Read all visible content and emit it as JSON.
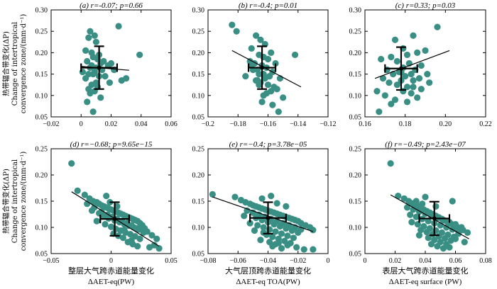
{
  "colors": {
    "point": "#3a8f84",
    "line": "#000000"
  },
  "ylabel_lines": [
    "热带辐合带变化(ΔP)",
    "Change of intertropical",
    "convergence zone/(mm·d⁻¹)"
  ],
  "chart_data": [
    {
      "type": "scatter",
      "title": "(a) r=-0.07; p=0.66",
      "xlabel": "",
      "xlim": [
        -0.02,
        0.06
      ],
      "ylim": [
        0.05,
        0.3
      ],
      "xticks": [
        -0.02,
        0,
        0.02,
        0.04,
        0.06
      ],
      "xtick_labels": [
        "−0.02",
        "0",
        "0.02",
        "0.04",
        "0.06"
      ],
      "yticks": [
        0.05,
        0.1,
        0.15,
        0.2,
        0.25,
        0.3
      ],
      "ytick_labels": [
        "0.05",
        "0.10",
        "0.15",
        "0.20",
        "0.25",
        "0.30"
      ],
      "x": [
        0.006,
        0.009,
        0.005,
        0.01,
        0.003,
        0.007,
        0.012,
        0.008,
        0.011,
        0.004,
        0.015,
        0.013,
        0.02,
        0.018,
        0.007,
        0.006,
        0.01,
        0.014,
        0.022,
        0.009,
        0.001,
        0.005,
        0.008,
        0.012,
        0.016,
        0.003,
        0.03,
        0.027,
        0.019,
        0.01,
        0.007,
        0.011,
        0.005,
        0.009,
        0.013,
        0.039,
        0.025,
        0.004,
        0.008,
        0.006
      ],
      "y": [
        0.25,
        0.24,
        0.235,
        0.225,
        0.205,
        0.2,
        0.195,
        0.19,
        0.185,
        0.18,
        0.18,
        0.175,
        0.175,
        0.17,
        0.17,
        0.165,
        0.165,
        0.16,
        0.16,
        0.155,
        0.155,
        0.15,
        0.15,
        0.145,
        0.145,
        0.14,
        0.14,
        0.135,
        0.13,
        0.13,
        0.125,
        0.12,
        0.115,
        0.11,
        0.095,
        0.195,
        0.262,
        0.085,
        0.062,
        0.105
      ],
      "regression": {
        "x": [
          0.0,
          0.032
        ],
        "y": [
          0.168,
          0.159
        ]
      },
      "mean": {
        "x": 0.012,
        "y": 0.165,
        "xerr": 0.012,
        "yerr": 0.05
      }
    },
    {
      "type": "scatter",
      "title": "(b) r=-0.4; p=0.01",
      "xlabel": "",
      "xlim": [
        -0.2,
        -0.12
      ],
      "ylim": [
        0.05,
        0.3
      ],
      "xticks": [
        -0.2,
        -0.18,
        -0.16,
        -0.14,
        -0.12
      ],
      "xtick_labels": [
        "−0.2",
        "−0.18",
        "−0.16",
        "−0.14",
        "−0.12"
      ],
      "yticks": [
        0.05,
        0.1,
        0.15,
        0.2,
        0.25,
        0.3
      ],
      "ytick_labels": [
        "0.05",
        "0.10",
        "0.15",
        "0.20",
        "0.25",
        "0.30"
      ],
      "x": [
        -0.184,
        -0.181,
        -0.168,
        -0.165,
        -0.162,
        -0.171,
        -0.158,
        -0.166,
        -0.163,
        -0.16,
        -0.172,
        -0.169,
        -0.155,
        -0.164,
        -0.161,
        -0.167,
        -0.17,
        -0.157,
        -0.163,
        -0.166,
        -0.159,
        -0.175,
        -0.162,
        -0.152,
        -0.168,
        -0.165,
        -0.16,
        -0.156,
        -0.154,
        -0.171,
        -0.158,
        -0.142,
        -0.163,
        -0.15,
        -0.167,
        -0.161,
        -0.164,
        -0.157,
        -0.153,
        -0.166
      ],
      "y": [
        0.265,
        0.25,
        0.24,
        0.23,
        0.22,
        0.21,
        0.2,
        0.195,
        0.19,
        0.185,
        0.18,
        0.175,
        0.175,
        0.17,
        0.165,
        0.16,
        0.16,
        0.155,
        0.15,
        0.15,
        0.145,
        0.145,
        0.14,
        0.14,
        0.135,
        0.13,
        0.125,
        0.12,
        0.115,
        0.17,
        0.11,
        0.195,
        0.1,
        0.095,
        0.135,
        0.105,
        0.085,
        0.078,
        0.062,
        0.125
      ],
      "regression": {
        "x": [
          -0.184,
          -0.138
        ],
        "y": [
          0.205,
          0.12
        ]
      },
      "mean": {
        "x": -0.164,
        "y": 0.165,
        "xerr": 0.009,
        "yerr": 0.05
      }
    },
    {
      "type": "scatter",
      "title": "(c) r=0.33; p=0.03",
      "xlabel": "",
      "xlim": [
        0.16,
        0.22
      ],
      "ylim": [
        0.05,
        0.3
      ],
      "xticks": [
        0.16,
        0.18,
        0.2,
        0.22
      ],
      "xtick_labels": [
        "0.16",
        "0.18",
        "0.20",
        "0.22"
      ],
      "yticks": [
        0.05,
        0.1,
        0.15,
        0.2,
        0.25,
        0.3
      ],
      "ytick_labels": [
        "0.05",
        "0.10",
        "0.15",
        "0.20",
        "0.25",
        "0.30"
      ],
      "x": [
        0.184,
        0.175,
        0.179,
        0.19,
        0.186,
        0.181,
        0.173,
        0.168,
        0.176,
        0.182,
        0.188,
        0.179,
        0.171,
        0.185,
        0.177,
        0.183,
        0.174,
        0.18,
        0.169,
        0.187,
        0.178,
        0.184,
        0.192,
        0.172,
        0.176,
        0.181,
        0.188,
        0.166,
        0.179,
        0.183,
        0.17,
        0.186,
        0.175,
        0.181,
        0.173,
        0.196,
        0.178,
        0.184,
        0.167,
        0.191
      ],
      "y": [
        0.24,
        0.23,
        0.21,
        0.205,
        0.2,
        0.195,
        0.19,
        0.185,
        0.18,
        0.175,
        0.17,
        0.165,
        0.16,
        0.16,
        0.155,
        0.15,
        0.15,
        0.145,
        0.14,
        0.14,
        0.135,
        0.135,
        0.13,
        0.13,
        0.125,
        0.12,
        0.115,
        0.11,
        0.11,
        0.105,
        0.1,
        0.095,
        0.09,
        0.085,
        0.08,
        0.26,
        0.155,
        0.12,
        0.062,
        0.15
      ],
      "regression": {
        "x": [
          0.165,
          0.202
        ],
        "y": [
          0.14,
          0.205
        ]
      },
      "mean": {
        "x": 0.178,
        "y": 0.163,
        "xerr": 0.008,
        "yerr": 0.05
      }
    },
    {
      "type": "scatter",
      "title": "(d) r=−0.68; p=9.65e−15",
      "xlabel_cn": "整层大气跨赤道能量变化",
      "xlabel": "ΔAET-eq(PW)",
      "xlim": [
        -0.05,
        0.05
      ],
      "ylim": [
        0.05,
        0.25
      ],
      "xticks": [
        -0.05,
        0,
        0.05
      ],
      "xtick_labels": [
        "−0.05",
        "0",
        "0.05"
      ],
      "yticks": [
        0.05,
        0.1,
        0.15,
        0.2,
        0.25
      ],
      "ytick_labels": [
        "0.05",
        "0.10",
        "0.15",
        "0.20",
        "0.25"
      ],
      "x": [
        -0.033,
        -0.028,
        -0.022,
        -0.018,
        -0.015,
        -0.012,
        -0.01,
        -0.008,
        -0.006,
        -0.004,
        -0.002,
        0.0,
        0.002,
        0.004,
        0.006,
        0.008,
        0.01,
        0.012,
        0.014,
        0.016,
        0.018,
        0.02,
        0.022,
        0.024,
        0.026,
        0.028,
        0.03,
        0.034,
        0.038,
        -0.016,
        -0.01,
        -0.006,
        -0.002,
        0.003,
        0.007,
        0.011,
        0.015,
        0.019,
        0.023,
        0.027,
        -0.02,
        -0.014,
        -0.008,
        -0.003,
        0.001,
        0.005,
        0.009,
        0.013,
        0.017,
        0.021,
        -0.012,
        -0.005,
        0.0,
        0.004,
        0.008,
        0.012,
        0.016,
        0.02,
        0.024,
        0.002,
        0.006,
        0.01,
        -0.001,
        0.014,
        0.018,
        0.022,
        0.032,
        0.036,
        0.04,
        -0.004,
        0.005,
        0.011,
        0.017
      ],
      "y": [
        0.222,
        0.17,
        0.162,
        0.155,
        0.15,
        0.148,
        0.145,
        0.142,
        0.14,
        0.138,
        0.136,
        0.134,
        0.132,
        0.13,
        0.128,
        0.126,
        0.124,
        0.122,
        0.12,
        0.118,
        0.116,
        0.114,
        0.112,
        0.108,
        0.104,
        0.098,
        0.092,
        0.085,
        0.078,
        0.132,
        0.127,
        0.121,
        0.117,
        0.113,
        0.11,
        0.106,
        0.103,
        0.1,
        0.096,
        0.09,
        0.145,
        0.138,
        0.13,
        0.124,
        0.12,
        0.116,
        0.112,
        0.108,
        0.104,
        0.098,
        0.112,
        0.106,
        0.101,
        0.097,
        0.094,
        0.09,
        0.087,
        0.083,
        0.078,
        0.088,
        0.084,
        0.08,
        0.148,
        0.072,
        0.068,
        0.064,
        0.062,
        0.066,
        0.06,
        0.16,
        0.14,
        0.095,
        0.075
      ],
      "regression": {
        "x": [
          -0.033,
          0.04
        ],
        "y": [
          0.168,
          0.064
        ]
      },
      "mean": {
        "x": 0.003,
        "y": 0.116,
        "xerr": 0.012,
        "yerr": 0.032
      }
    },
    {
      "type": "scatter",
      "title": "(e) r=−0.4; p=3.78e−05",
      "xlabel_cn": "大气层顶跨赤道能量变化",
      "xlabel": "ΔAET-eq TOA(PW)",
      "xlim": [
        -0.08,
        0.0
      ],
      "ylim": [
        0.05,
        0.25
      ],
      "xticks": [
        -0.08,
        -0.06,
        -0.04,
        -0.02,
        0.0
      ],
      "xtick_labels": [
        "−0.08",
        "−0.06",
        "−0.04",
        "−0.02",
        "0"
      ],
      "yticks": [
        0.05,
        0.1,
        0.15,
        0.2,
        0.25
      ],
      "ytick_labels": [
        "0.05",
        "0.10",
        "0.15",
        "0.20",
        "0.25"
      ],
      "x": [
        -0.077,
        -0.062,
        -0.058,
        -0.055,
        -0.052,
        -0.05,
        -0.048,
        -0.046,
        -0.044,
        -0.042,
        -0.04,
        -0.038,
        -0.036,
        -0.034,
        -0.032,
        -0.03,
        -0.028,
        -0.026,
        -0.024,
        -0.022,
        -0.02,
        -0.018,
        -0.015,
        -0.012,
        -0.01,
        -0.054,
        -0.05,
        -0.046,
        -0.042,
        -0.038,
        -0.034,
        -0.03,
        -0.026,
        -0.022,
        -0.018,
        -0.048,
        -0.044,
        -0.04,
        -0.036,
        -0.032,
        -0.028,
        -0.024,
        -0.02,
        -0.052,
        -0.047,
        -0.043,
        -0.039,
        -0.035,
        -0.031,
        -0.027,
        -0.023,
        -0.056,
        -0.041,
        -0.037,
        -0.033,
        -0.029,
        -0.025,
        -0.045,
        -0.039,
        -0.035,
        -0.049,
        -0.043,
        -0.037,
        -0.031,
        -0.027,
        -0.021,
        -0.016,
        -0.034,
        -0.028,
        -0.044,
        -0.038,
        -0.01,
        -0.033
      ],
      "y": [
        0.163,
        0.158,
        0.152,
        0.148,
        0.145,
        0.142,
        0.14,
        0.138,
        0.136,
        0.134,
        0.132,
        0.13,
        0.128,
        0.126,
        0.124,
        0.122,
        0.12,
        0.118,
        0.116,
        0.114,
        0.112,
        0.108,
        0.104,
        0.1,
        0.095,
        0.132,
        0.128,
        0.124,
        0.12,
        0.116,
        0.112,
        0.108,
        0.104,
        0.1,
        0.096,
        0.118,
        0.114,
        0.11,
        0.106,
        0.102,
        0.098,
        0.094,
        0.09,
        0.108,
        0.104,
        0.1,
        0.096,
        0.092,
        0.088,
        0.084,
        0.08,
        0.122,
        0.086,
        0.082,
        0.078,
        0.074,
        0.07,
        0.076,
        0.072,
        0.068,
        0.094,
        0.09,
        0.064,
        0.06,
        0.066,
        0.062,
        0.058,
        0.146,
        0.14,
        0.155,
        0.16,
        0.058,
        0.07
      ],
      "regression": {
        "x": [
          -0.077,
          -0.01
        ],
        "y": [
          0.158,
          0.092
        ]
      },
      "mean": {
        "x": -0.04,
        "y": 0.118,
        "xerr": 0.012,
        "yerr": 0.03
      }
    },
    {
      "type": "scatter",
      "title": "(f) r=−0.49; p=2.43e−07",
      "xlabel_cn": "表层大气跨赤道能量变化",
      "xlabel": "ΔAET-eq surface (PW)",
      "xlim": [
        0.0,
        0.08
      ],
      "ylim": [
        0.05,
        0.25
      ],
      "xticks": [
        0.0,
        0.02,
        0.04,
        0.06,
        0.08
      ],
      "xtick_labels": [
        "0",
        "0.02",
        "0.04",
        "0.06",
        "0.08"
      ],
      "yticks": [
        0.05,
        0.1,
        0.15,
        0.2,
        0.25
      ],
      "ytick_labels": [
        "0.05",
        "0.10",
        "0.15",
        "0.20",
        "0.25"
      ],
      "x": [
        0.017,
        0.022,
        0.026,
        0.029,
        0.031,
        0.033,
        0.035,
        0.037,
        0.039,
        0.041,
        0.043,
        0.045,
        0.047,
        0.049,
        0.051,
        0.053,
        0.055,
        0.057,
        0.059,
        0.061,
        0.063,
        0.065,
        0.068,
        0.028,
        0.032,
        0.036,
        0.04,
        0.044,
        0.048,
        0.052,
        0.056,
        0.06,
        0.064,
        0.03,
        0.034,
        0.038,
        0.042,
        0.046,
        0.05,
        0.054,
        0.058,
        0.062,
        0.031,
        0.035,
        0.039,
        0.043,
        0.047,
        0.051,
        0.055,
        0.059,
        0.037,
        0.041,
        0.045,
        0.049,
        0.053,
        0.057,
        0.042,
        0.046,
        0.05,
        0.054,
        0.044,
        0.048,
        0.052,
        0.038,
        0.058,
        0.062,
        0.066,
        0.034,
        0.04,
        0.056,
        0.036,
        0.047,
        0.06
      ],
      "y": [
        0.222,
        0.16,
        0.155,
        0.15,
        0.146,
        0.143,
        0.14,
        0.137,
        0.134,
        0.131,
        0.128,
        0.125,
        0.122,
        0.119,
        0.116,
        0.113,
        0.11,
        0.107,
        0.104,
        0.101,
        0.098,
        0.095,
        0.09,
        0.138,
        0.134,
        0.13,
        0.126,
        0.122,
        0.118,
        0.114,
        0.11,
        0.106,
        0.1,
        0.124,
        0.12,
        0.116,
        0.112,
        0.108,
        0.104,
        0.1,
        0.096,
        0.092,
        0.11,
        0.106,
        0.102,
        0.098,
        0.094,
        0.09,
        0.086,
        0.082,
        0.095,
        0.091,
        0.087,
        0.083,
        0.079,
        0.075,
        0.08,
        0.076,
        0.072,
        0.068,
        0.068,
        0.064,
        0.06,
        0.145,
        0.15,
        0.088,
        0.072,
        0.15,
        0.158,
        0.062,
        0.085,
        0.14,
        0.078
      ],
      "regression": {
        "x": [
          0.017,
          0.069
        ],
        "y": [
          0.162,
          0.078
        ]
      },
      "mean": {
        "x": 0.046,
        "y": 0.117,
        "xerr": 0.01,
        "yerr": 0.032
      }
    }
  ]
}
